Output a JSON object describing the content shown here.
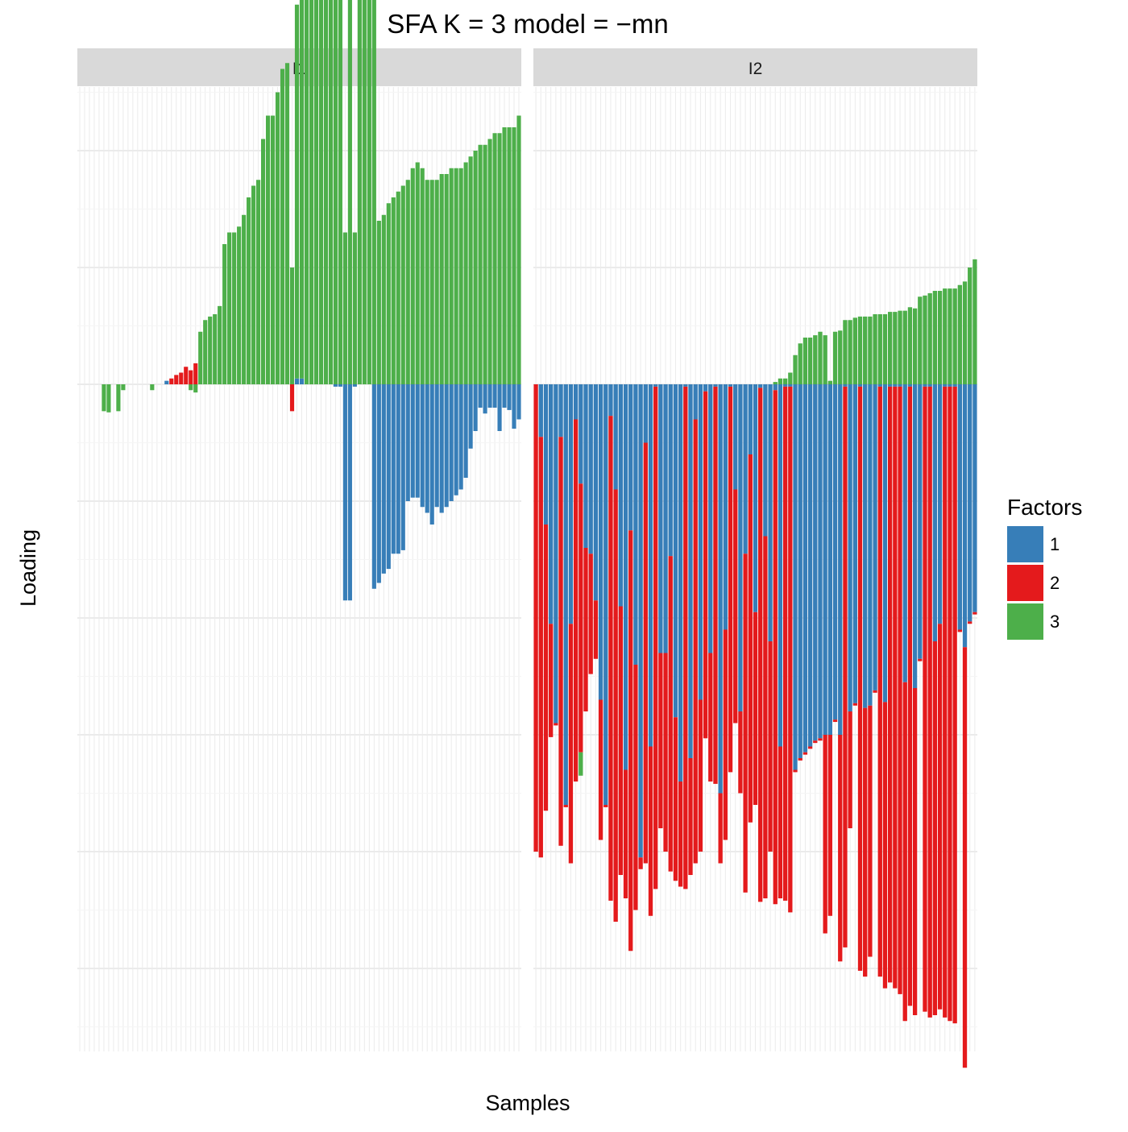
{
  "chart_data": {
    "type": "bar",
    "stacked": true,
    "title": "SFA K = 3 model =  −mn",
    "xlabel": "Samples",
    "ylabel": "Loading",
    "y_axis_tick_labels_shown": false,
    "x_axis_tick_labels_shown": false,
    "grid": true,
    "background": "#ffffff",
    "grid_color": "#ebebeb",
    "strip_color": "#d9d9d9",
    "legend": {
      "title": "Factors",
      "placement": "right",
      "entries": [
        {
          "label": "1",
          "color": "#377EB8"
        },
        {
          "label": "2",
          "color": "#E41A1C"
        },
        {
          "label": "3",
          "color": "#4DAF4A"
        }
      ]
    },
    "panels": [
      {
        "strip_label": "I1",
        "bars": [
          {
            "f1": 0,
            "f2": 0,
            "f3": 0
          },
          {
            "f1": 0,
            "f2": 0,
            "f3": 0
          },
          {
            "f1": 0,
            "f2": 0,
            "f3": 0
          },
          {
            "f1": 0,
            "f2": 0,
            "f3": 0
          },
          {
            "f1": 0,
            "f2": 0,
            "f3": 0
          },
          {
            "f1": 0,
            "f2": 0,
            "f3": -0.23
          },
          {
            "f1": 0,
            "f2": 0,
            "f3": -0.24
          },
          {
            "f1": 0,
            "f2": 0,
            "f3": 0
          },
          {
            "f1": 0,
            "f2": 0,
            "f3": -0.23
          },
          {
            "f1": 0,
            "f2": 0,
            "f3": -0.05
          },
          {
            "f1": 0,
            "f2": 0,
            "f3": 0
          },
          {
            "f1": 0,
            "f2": 0,
            "f3": 0
          },
          {
            "f1": 0,
            "f2": 0,
            "f3": 0
          },
          {
            "f1": 0,
            "f2": 0,
            "f3": 0
          },
          {
            "f1": 0,
            "f2": 0,
            "f3": 0
          },
          {
            "f1": 0,
            "f2": 0,
            "f3": -0.05
          },
          {
            "f1": 0,
            "f2": 0,
            "f3": 0
          },
          {
            "f1": 0,
            "f2": 0,
            "f3": 0
          },
          {
            "f1": 0.03,
            "f2": 0,
            "f3": 0
          },
          {
            "f1": 0,
            "f2": 0.05,
            "f3": 0
          },
          {
            "f1": 0,
            "f2": 0.08,
            "f3": 0
          },
          {
            "f1": 0,
            "f2": 0.1,
            "f3": 0
          },
          {
            "f1": 0,
            "f2": 0.15,
            "f3": 0
          },
          {
            "f1": 0,
            "f2": 0.12,
            "f3": -0.05
          },
          {
            "f1": 0,
            "f2": 0.18,
            "f3": -0.07
          },
          {
            "f1": 0,
            "f2": 0,
            "f3": 0.45
          },
          {
            "f1": 0,
            "f2": 0,
            "f3": 0.55
          },
          {
            "f1": 0,
            "f2": 0,
            "f3": 0.58
          },
          {
            "f1": 0,
            "f2": 0,
            "f3": 0.6
          },
          {
            "f1": 0,
            "f2": 0,
            "f3": 0.67
          },
          {
            "f1": 0,
            "f2": 0,
            "f3": 1.2
          },
          {
            "f1": 0,
            "f2": 0,
            "f3": 1.3
          },
          {
            "f1": 0,
            "f2": 0,
            "f3": 1.3
          },
          {
            "f1": 0,
            "f2": 0,
            "f3": 1.35
          },
          {
            "f1": 0,
            "f2": 0,
            "f3": 1.45
          },
          {
            "f1": 0,
            "f2": 0,
            "f3": 1.6
          },
          {
            "f1": 0,
            "f2": 0,
            "f3": 1.7
          },
          {
            "f1": 0,
            "f2": 0,
            "f3": 1.75
          },
          {
            "f1": 0,
            "f2": 0,
            "f3": 2.1
          },
          {
            "f1": 0,
            "f2": 0,
            "f3": 2.3
          },
          {
            "f1": 0,
            "f2": 0,
            "f3": 2.3
          },
          {
            "f1": 0,
            "f2": 0,
            "f3": 2.5
          },
          {
            "f1": 0,
            "f2": 0,
            "f3": 2.7
          },
          {
            "f1": 0,
            "f2": 0,
            "f3": 2.75
          },
          {
            "f1": 0,
            "f2": -0.23,
            "f3": 1.0
          },
          {
            "f1": 0.05,
            "f2": 0,
            "f3": 3.2
          },
          {
            "f1": 0.05,
            "f2": 0,
            "f3": 3.25
          },
          {
            "f1": 0,
            "f2": 0,
            "f3": 3.3
          },
          {
            "f1": 0,
            "f2": 0,
            "f3": 3.35
          },
          {
            "f1": 0,
            "f2": 0,
            "f3": 3.35
          },
          {
            "f1": 0,
            "f2": 0,
            "f3": 3.35
          },
          {
            "f1": 0,
            "f2": 0,
            "f3": 3.45
          },
          {
            "f1": 0,
            "f2": 0,
            "f3": 3.45
          },
          {
            "f1": -0.02,
            "f2": 0,
            "f3": 3.8
          },
          {
            "f1": -0.02,
            "f2": 0,
            "f3": 3.8
          },
          {
            "f1": -1.85,
            "f2": 0,
            "f3": 1.3
          },
          {
            "f1": -1.85,
            "f2": 0,
            "f3": 3.85
          },
          {
            "f1": -0.02,
            "f2": 0,
            "f3": 1.3
          },
          {
            "f1": 0,
            "f2": 0,
            "f3": 3.9
          },
          {
            "f1": 0,
            "f2": 0,
            "f3": 3.9
          },
          {
            "f1": 0,
            "f2": 0,
            "f3": 3.9
          },
          {
            "f1": -1.75,
            "f2": 0,
            "f3": 4.2
          },
          {
            "f1": -1.7,
            "f2": 0,
            "f3": 1.4
          },
          {
            "f1": -1.62,
            "f2": 0,
            "f3": 1.45
          },
          {
            "f1": -1.58,
            "f2": 0,
            "f3": 1.55
          },
          {
            "f1": -1.45,
            "f2": 0,
            "f3": 1.6
          },
          {
            "f1": -1.45,
            "f2": 0,
            "f3": 1.65
          },
          {
            "f1": -1.42,
            "f2": 0,
            "f3": 1.7
          },
          {
            "f1": -1.0,
            "f2": 0,
            "f3": 1.75
          },
          {
            "f1": -0.97,
            "f2": 0,
            "f3": 1.85
          },
          {
            "f1": -0.97,
            "f2": 0,
            "f3": 1.9
          },
          {
            "f1": -1.05,
            "f2": 0,
            "f3": 1.85
          },
          {
            "f1": -1.1,
            "f2": 0,
            "f3": 1.75
          },
          {
            "f1": -1.2,
            "f2": 0,
            "f3": 1.75
          },
          {
            "f1": -1.05,
            "f2": 0,
            "f3": 1.75
          },
          {
            "f1": -1.1,
            "f2": 0,
            "f3": 1.8
          },
          {
            "f1": -1.05,
            "f2": 0,
            "f3": 1.8
          },
          {
            "f1": -1.0,
            "f2": 0,
            "f3": 1.85
          },
          {
            "f1": -0.95,
            "f2": 0,
            "f3": 1.85
          },
          {
            "f1": -0.9,
            "f2": 0,
            "f3": 1.85
          },
          {
            "f1": -0.8,
            "f2": 0,
            "f3": 1.9
          },
          {
            "f1": -0.55,
            "f2": 0,
            "f3": 1.95
          },
          {
            "f1": -0.4,
            "f2": 0,
            "f3": 2.0
          },
          {
            "f1": -0.2,
            "f2": 0,
            "f3": 2.05
          },
          {
            "f1": -0.25,
            "f2": 0,
            "f3": 2.05
          },
          {
            "f1": -0.2,
            "f2": 0,
            "f3": 2.1
          },
          {
            "f1": -0.2,
            "f2": 0,
            "f3": 2.15
          },
          {
            "f1": -0.4,
            "f2": 0,
            "f3": 2.15
          },
          {
            "f1": -0.2,
            "f2": 0,
            "f3": 2.2
          },
          {
            "f1": -0.22,
            "f2": 0,
            "f3": 2.2
          },
          {
            "f1": -0.38,
            "f2": 0,
            "f3": 2.2
          },
          {
            "f1": -0.3,
            "f2": 0,
            "f3": 2.3
          }
        ]
      },
      {
        "strip_label": "I2",
        "bars": [
          {
            "f1": 0,
            "f2": -4.0,
            "f3": 0
          },
          {
            "f1": -0.45,
            "f2": -3.6,
            "f3": 0
          },
          {
            "f1": -1.2,
            "f2": -2.45,
            "f3": 0
          },
          {
            "f1": -2.05,
            "f2": -0.97,
            "f3": 0
          },
          {
            "f1": -2.9,
            "f2": -0.02,
            "f3": 0
          },
          {
            "f1": -0.45,
            "f2": -3.5,
            "f3": 0
          },
          {
            "f1": -3.6,
            "f2": -0.02,
            "f3": 0
          },
          {
            "f1": -2.05,
            "f2": -2.05,
            "f3": 0
          },
          {
            "f1": -0.3,
            "f2": -3.1,
            "f3": 0
          },
          {
            "f1": -0.85,
            "f2": -2.3,
            "f3": -0.2
          },
          {
            "f1": -1.4,
            "f2": -1.4,
            "f3": 0
          },
          {
            "f1": -1.45,
            "f2": -1.03,
            "f3": 0
          },
          {
            "f1": -1.85,
            "f2": -0.5,
            "f3": 0
          },
          {
            "f1": -2.7,
            "f2": -1.2,
            "f3": 0
          },
          {
            "f1": -3.6,
            "f2": -0.02,
            "f3": 0
          },
          {
            "f1": -0.27,
            "f2": -4.15,
            "f3": 0
          },
          {
            "f1": -0.9,
            "f2": -3.7,
            "f3": 0
          },
          {
            "f1": -1.9,
            "f2": -2.3,
            "f3": 0
          },
          {
            "f1": -3.3,
            "f2": -1.1,
            "f3": 0
          },
          {
            "f1": -1.25,
            "f2": -3.6,
            "f3": 0
          },
          {
            "f1": -2.4,
            "f2": -2.1,
            "f3": 0
          },
          {
            "f1": -4.05,
            "f2": -0.1,
            "f3": 0
          },
          {
            "f1": -0.5,
            "f2": -3.6,
            "f3": 0
          },
          {
            "f1": -3.1,
            "f2": -1.45,
            "f3": 0
          },
          {
            "f1": -0.02,
            "f2": -4.3,
            "f3": 0
          },
          {
            "f1": -2.3,
            "f2": -1.5,
            "f3": 0
          },
          {
            "f1": -2.3,
            "f2": -1.7,
            "f3": 0
          },
          {
            "f1": -1.47,
            "f2": -2.7,
            "f3": 0
          },
          {
            "f1": -2.85,
            "f2": -1.4,
            "f3": 0
          },
          {
            "f1": -3.4,
            "f2": -0.9,
            "f3": 0
          },
          {
            "f1": -0.02,
            "f2": -4.3,
            "f3": 0
          },
          {
            "f1": -3.2,
            "f2": -1.0,
            "f3": 0
          },
          {
            "f1": -0.3,
            "f2": -3.8,
            "f3": 0
          },
          {
            "f1": -2.7,
            "f2": -1.3,
            "f3": 0
          },
          {
            "f1": -0.06,
            "f2": -2.97,
            "f3": 0
          },
          {
            "f1": -2.3,
            "f2": -1.1,
            "f3": 0
          },
          {
            "f1": -0.02,
            "f2": -3.4,
            "f3": 0
          },
          {
            "f1": -3.5,
            "f2": -0.6,
            "f3": 0
          },
          {
            "f1": -2.1,
            "f2": -1.8,
            "f3": 0
          },
          {
            "f1": -0.02,
            "f2": -3.3,
            "f3": 0
          },
          {
            "f1": -0.9,
            "f2": -2.0,
            "f3": 0
          },
          {
            "f1": -2.8,
            "f2": -0.7,
            "f3": 0
          },
          {
            "f1": -1.45,
            "f2": -2.9,
            "f3": 0
          },
          {
            "f1": -0.6,
            "f2": -3.15,
            "f3": 0
          },
          {
            "f1": -1.95,
            "f2": -1.65,
            "f3": 0
          },
          {
            "f1": -0.03,
            "f2": -4.4,
            "f3": 0
          },
          {
            "f1": -1.3,
            "f2": -3.1,
            "f3": 0
          },
          {
            "f1": -2.2,
            "f2": -1.8,
            "f3": 0
          },
          {
            "f1": -0.05,
            "f2": -4.4,
            "f3": 0.02
          },
          {
            "f1": -3.1,
            "f2": -1.3,
            "f3": 0.05
          },
          {
            "f1": -0.02,
            "f2": -4.4,
            "f3": 0.05
          },
          {
            "f1": -0.02,
            "f2": -4.5,
            "f3": 0.1
          },
          {
            "f1": -3.3,
            "f2": -0.02,
            "f3": 0.25
          },
          {
            "f1": -3.2,
            "f2": -0.02,
            "f3": 0.35
          },
          {
            "f1": -3.15,
            "f2": -0.02,
            "f3": 0.4
          },
          {
            "f1": -3.1,
            "f2": -0.02,
            "f3": 0.4
          },
          {
            "f1": -3.05,
            "f2": -0.02,
            "f3": 0.42
          },
          {
            "f1": -3.03,
            "f2": -0.02,
            "f3": 0.45
          },
          {
            "f1": -3.0,
            "f2": -1.7,
            "f3": 0.42
          },
          {
            "f1": -3.0,
            "f2": -1.55,
            "f3": 0.03
          },
          {
            "f1": -2.87,
            "f2": -0.02,
            "f3": 0.45
          },
          {
            "f1": -3.0,
            "f2": -1.94,
            "f3": 0.46
          },
          {
            "f1": -0.02,
            "f2": -4.8,
            "f3": 0.55
          },
          {
            "f1": -2.8,
            "f2": -1.0,
            "f3": 0.55
          },
          {
            "f1": -2.73,
            "f2": -0.02,
            "f3": 0.57
          },
          {
            "f1": -0.02,
            "f2": -5.0,
            "f3": 0.58
          },
          {
            "f1": -2.77,
            "f2": -2.3,
            "f3": 0.58
          },
          {
            "f1": -2.75,
            "f2": -2.15,
            "f3": 0.58
          },
          {
            "f1": -2.62,
            "f2": -0.02,
            "f3": 0.6
          },
          {
            "f1": -0.02,
            "f2": -5.05,
            "f3": 0.6
          },
          {
            "f1": -2.72,
            "f2": -2.45,
            "f3": 0.6
          },
          {
            "f1": -0.02,
            "f2": -5.1,
            "f3": 0.62
          },
          {
            "f1": -0.02,
            "f2": -5.15,
            "f3": 0.62
          },
          {
            "f1": -0.02,
            "f2": -5.2,
            "f3": 0.63
          },
          {
            "f1": -2.55,
            "f2": -2.9,
            "f3": 0.63
          },
          {
            "f1": -0.02,
            "f2": -5.3,
            "f3": 0.66
          },
          {
            "f1": -2.6,
            "f2": -2.8,
            "f3": 0.65
          },
          {
            "f1": -2.35,
            "f2": -0.02,
            "f3": 0.75
          },
          {
            "f1": -0.02,
            "f2": -5.35,
            "f3": 0.76
          },
          {
            "f1": -0.02,
            "f2": -5.4,
            "f3": 0.78
          },
          {
            "f1": -2.2,
            "f2": -3.2,
            "f3": 0.8
          },
          {
            "f1": -2.05,
            "f2": -3.3,
            "f3": 0.8
          },
          {
            "f1": -0.02,
            "f2": -5.4,
            "f3": 0.82
          },
          {
            "f1": -0.02,
            "f2": -5.43,
            "f3": 0.82
          },
          {
            "f1": -0.02,
            "f2": -5.45,
            "f3": 0.82
          },
          {
            "f1": -2.1,
            "f2": -0.02,
            "f3": 0.85
          },
          {
            "f1": -2.25,
            "f2": -3.6,
            "f3": 0.88
          },
          {
            "f1": -2.03,
            "f2": -0.02,
            "f3": 1.0
          },
          {
            "f1": -1.95,
            "f2": -0.02,
            "f3": 1.07
          }
        ]
      }
    ]
  }
}
